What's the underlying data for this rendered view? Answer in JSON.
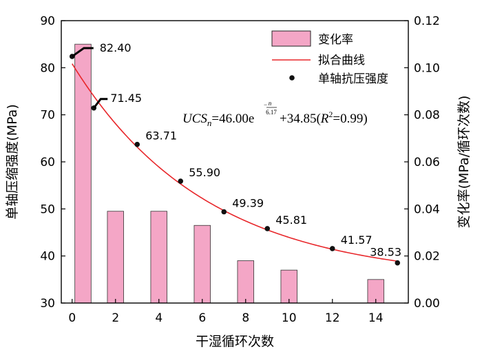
{
  "chart_data": {
    "type": "bar+line+scatter",
    "xlabel": "干湿循环次数",
    "ylabel_left": "单轴压缩强度(MPa)",
    "ylabel_right": "变化率(MPa/循环次数)",
    "xlim": [
      -0.5,
      15.5
    ],
    "ylim_left": [
      30,
      90
    ],
    "ylim_right": [
      0.0,
      0.12
    ],
    "x_ticks": [
      "0",
      "2",
      "4",
      "6",
      "8",
      "10",
      "12",
      "14"
    ],
    "y_ticks_left": [
      "30",
      "40",
      "50",
      "60",
      "70",
      "80",
      "90"
    ],
    "y_ticks_right": [
      "0.00",
      "0.02",
      "0.04",
      "0.06",
      "0.08",
      "0.10",
      "0.12"
    ],
    "legend": {
      "position": "top-right",
      "entries": [
        "变化率",
        "拟合曲线",
        "单轴抗压强度"
      ]
    },
    "bars": {
      "name": "变化率",
      "color": "#f4a6c6",
      "x": [
        0.5,
        2,
        4,
        6,
        8,
        10,
        14
      ],
      "values": [
        0.11,
        0.039,
        0.039,
        0.033,
        0.018,
        0.014,
        0.01
      ]
    },
    "points": {
      "name": "单轴抗压强度",
      "x": [
        0,
        1,
        3,
        5,
        7,
        9,
        12,
        15
      ],
      "y": [
        82.4,
        71.45,
        63.71,
        55.9,
        49.39,
        45.81,
        41.57,
        38.53
      ],
      "labels": [
        "82.40",
        "71.45",
        "63.71",
        "55.90",
        "49.39",
        "45.81",
        "41.57",
        "38.53"
      ]
    },
    "fit": {
      "name": "拟合曲线",
      "color": "#e8262a",
      "a": 46.0,
      "b": 6.17,
      "c": 34.85
    },
    "equation": {
      "ucs": "UCS",
      "n": "n",
      "eq": "=46.00e",
      "exp_num": "n",
      "exp_den": "6.17",
      "plus": "+34.85(",
      "r": "R",
      "two": "2",
      "r2": "=0.99)"
    }
  }
}
